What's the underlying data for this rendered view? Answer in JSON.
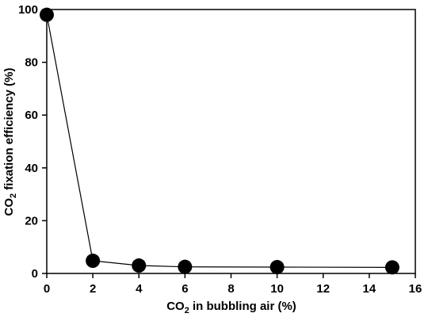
{
  "chart_data": {
    "type": "scatter",
    "title": "",
    "xlabel": {
      "prefix": "CO",
      "sub": "2",
      "suffix": " in bubbling air (%)"
    },
    "ylabel": {
      "prefix": "CO",
      "sub": "2",
      "suffix": " fixation efficiency (%)"
    },
    "xlim": [
      0,
      16
    ],
    "ylim": [
      0,
      100
    ],
    "x_ticks": [
      0,
      2,
      4,
      6,
      8,
      10,
      12,
      14,
      16
    ],
    "y_ticks": [
      0,
      20,
      40,
      60,
      80,
      100
    ],
    "grid": false,
    "legend": "none",
    "series": [
      {
        "x": [
          0,
          2,
          4,
          6,
          10,
          15
        ],
        "y": [
          98,
          4.8,
          3.0,
          2.5,
          2.4,
          2.3
        ],
        "marker": "circle",
        "line": true,
        "color": "#000000"
      }
    ]
  }
}
